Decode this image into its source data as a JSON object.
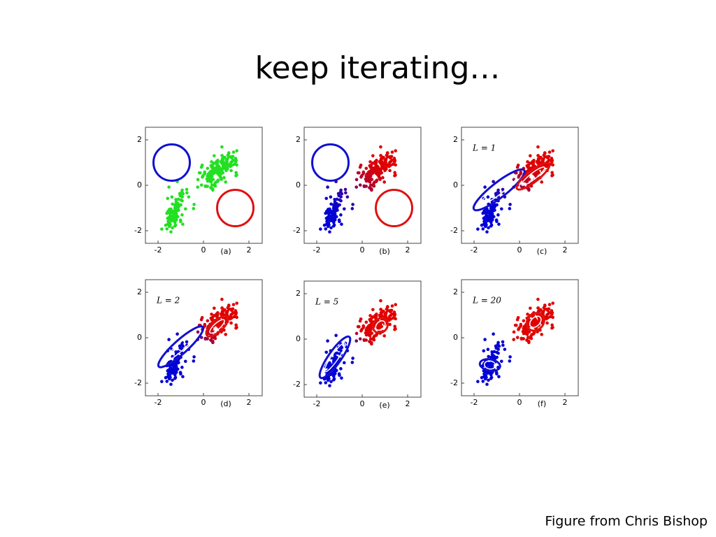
{
  "title": "keep iterating…",
  "caption": "Figure from Chris Bishop",
  "panels": [
    {
      "label": "(a)",
      "xticks": [
        -2,
        0,
        2
      ],
      "yticks": [
        -2,
        0,
        2
      ]
    },
    {
      "label": "(b)",
      "xticks": [
        -2,
        0,
        2
      ],
      "yticks": [
        -2,
        0,
        2
      ]
    },
    {
      "label": "(c)",
      "annotation": "L = 1",
      "xticks": [
        -2,
        0,
        2
      ],
      "yticks": [
        -2,
        0,
        2
      ]
    },
    {
      "label": "(d)",
      "annotation": "L = 2",
      "xticks": [
        -2,
        0,
        2
      ],
      "yticks": [
        -2,
        0,
        2
      ]
    },
    {
      "label": "(e)",
      "annotation": "L = 5",
      "xticks": [
        -2,
        0,
        2
      ],
      "yticks": [
        -2,
        0,
        2
      ]
    },
    {
      "label": "(f)",
      "annotation": "L = 20",
      "xticks": [
        -2,
        0,
        2
      ],
      "yticks": [
        -2,
        0,
        2
      ]
    }
  ]
}
